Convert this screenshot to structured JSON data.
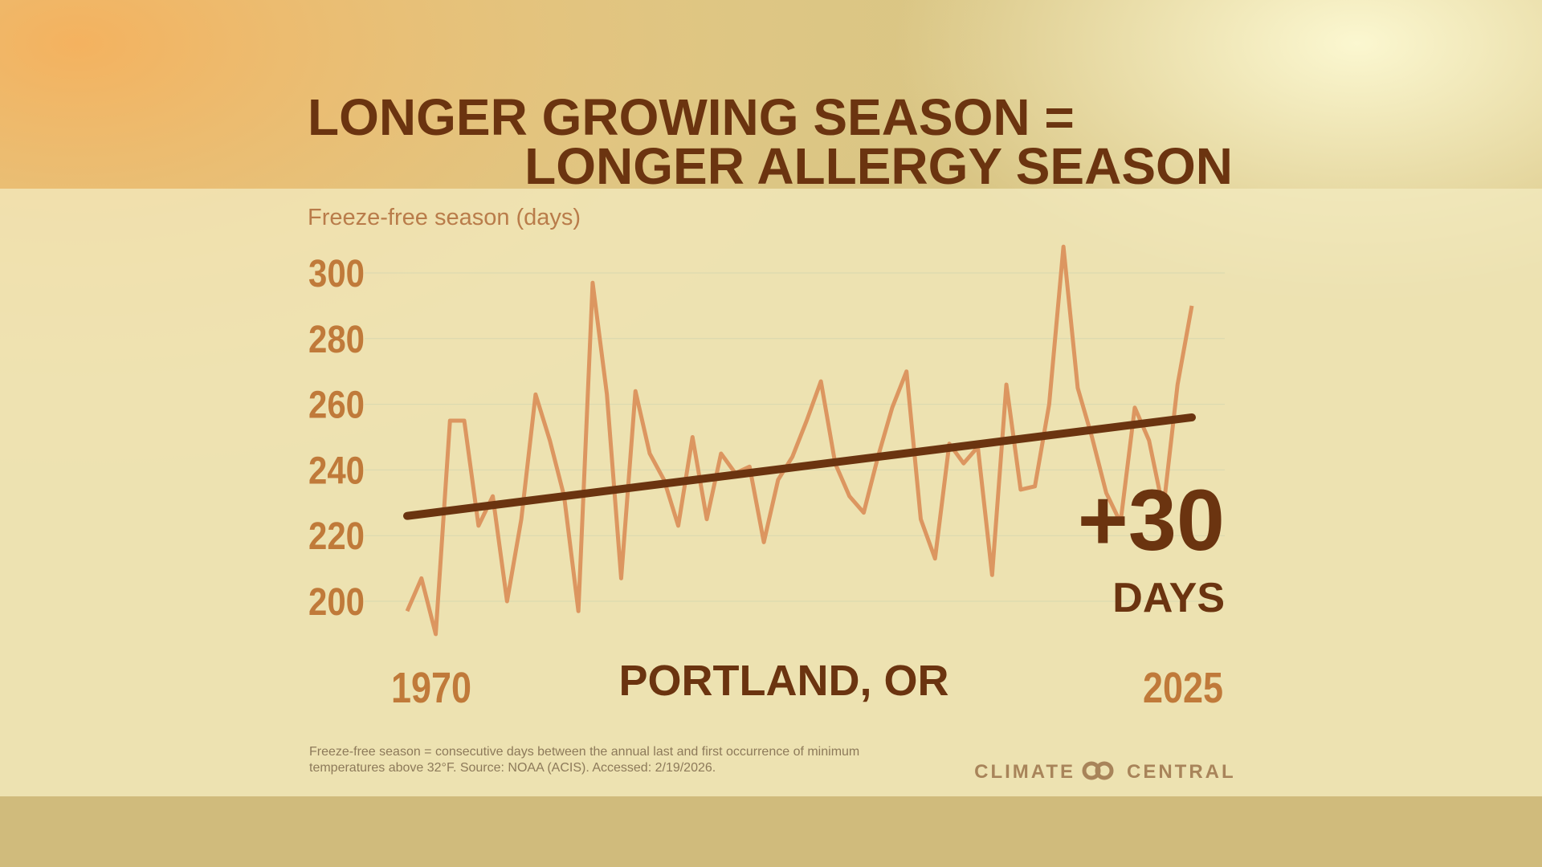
{
  "chart_data": {
    "type": "line",
    "title_lines": [
      "LONGER GROWING SEASON =",
      "LONGER ALLERGY SEASON"
    ],
    "y_label": "Freeze-free season (days)",
    "x": [
      1970,
      1971,
      1972,
      1973,
      1974,
      1975,
      1976,
      1977,
      1978,
      1979,
      1980,
      1981,
      1982,
      1983,
      1984,
      1985,
      1986,
      1987,
      1988,
      1989,
      1990,
      1991,
      1992,
      1993,
      1994,
      1995,
      1996,
      1997,
      1998,
      1999,
      2000,
      2001,
      2002,
      2003,
      2004,
      2005,
      2006,
      2007,
      2008,
      2009,
      2010,
      2011,
      2012,
      2013,
      2014,
      2015,
      2016,
      2017,
      2018,
      2019,
      2020,
      2021,
      2022,
      2023,
      2024,
      2025
    ],
    "values": [
      197,
      207,
      190,
      255,
      255,
      223,
      232,
      200,
      225,
      263,
      249,
      232,
      197,
      297,
      263,
      207,
      264,
      245,
      237,
      223,
      250,
      225,
      245,
      239,
      241,
      218,
      237,
      244,
      255,
      267,
      242,
      232,
      227,
      244,
      259,
      270,
      225,
      213,
      248,
      242,
      247,
      208,
      266,
      234,
      235,
      260,
      308,
      265,
      250,
      233,
      224,
      259,
      249,
      228,
      266,
      290
    ],
    "color": "#dc9660",
    "trend": {
      "x": [
        1970,
        2025
      ],
      "values": [
        226,
        256
      ],
      "color": "#6b3410"
    },
    "xlim": [
      1970,
      2025
    ],
    "xticks": [
      1970,
      2025
    ],
    "ylim": [
      200,
      300
    ],
    "yticks": [
      200,
      220,
      240,
      260,
      280,
      300
    ],
    "grid": true,
    "annotations": {
      "change": "+30",
      "unit": "DAYS",
      "location": "PORTLAND, OR"
    },
    "footnote_lines": [
      "Freeze-free season = consecutive days between the annual last and first occurrence of minimum",
      "temperatures above 32°F. Source: NOAA (ACIS). Accessed: 2/19/2026."
    ],
    "logo": [
      "CLIMATE",
      "CENTRAL"
    ]
  }
}
